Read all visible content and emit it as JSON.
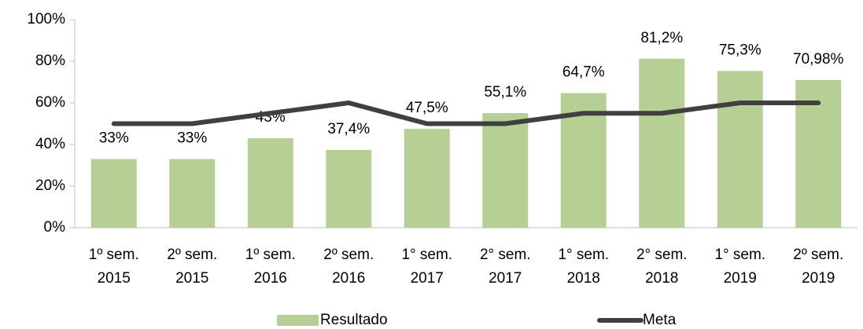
{
  "chart_data": {
    "type": "bar",
    "categories": [
      [
        "1º sem.",
        "2015"
      ],
      [
        "2º sem.",
        "2015"
      ],
      [
        "1º sem.",
        "2016"
      ],
      [
        "2º sem.",
        "2016"
      ],
      [
        "1° sem.",
        "2017"
      ],
      [
        "2° sem.",
        "2017"
      ],
      [
        "1° sem.",
        "2018"
      ],
      [
        "2° sem.",
        "2018"
      ],
      [
        "1° sem.",
        "2019"
      ],
      [
        "2º sem.",
        "2019"
      ]
    ],
    "series": [
      {
        "name": "Resultado",
        "type": "bar",
        "color": "#b6cf95",
        "values": [
          33,
          33,
          43,
          37.4,
          47.5,
          55.1,
          64.7,
          81.2,
          75.3,
          70.98
        ],
        "value_labels": [
          "33%",
          "33%",
          "43%",
          "37,4%",
          "47,5%",
          "55,1%",
          "64,7%",
          "81,2%",
          "75,3%",
          "70,98%"
        ]
      },
      {
        "name": "Meta",
        "type": "line",
        "color": "#404040",
        "values": [
          50,
          50,
          55,
          60,
          50,
          50,
          55,
          55,
          60,
          60
        ]
      }
    ],
    "ylim": [
      0,
      100
    ],
    "yticks": [
      {
        "value": 0,
        "label": "0%"
      },
      {
        "value": 20,
        "label": "20%"
      },
      {
        "value": 40,
        "label": "40%"
      },
      {
        "value": 60,
        "label": "60%"
      },
      {
        "value": 80,
        "label": "80%"
      },
      {
        "value": 100,
        "label": "100%"
      }
    ],
    "legend": "bottom"
  }
}
